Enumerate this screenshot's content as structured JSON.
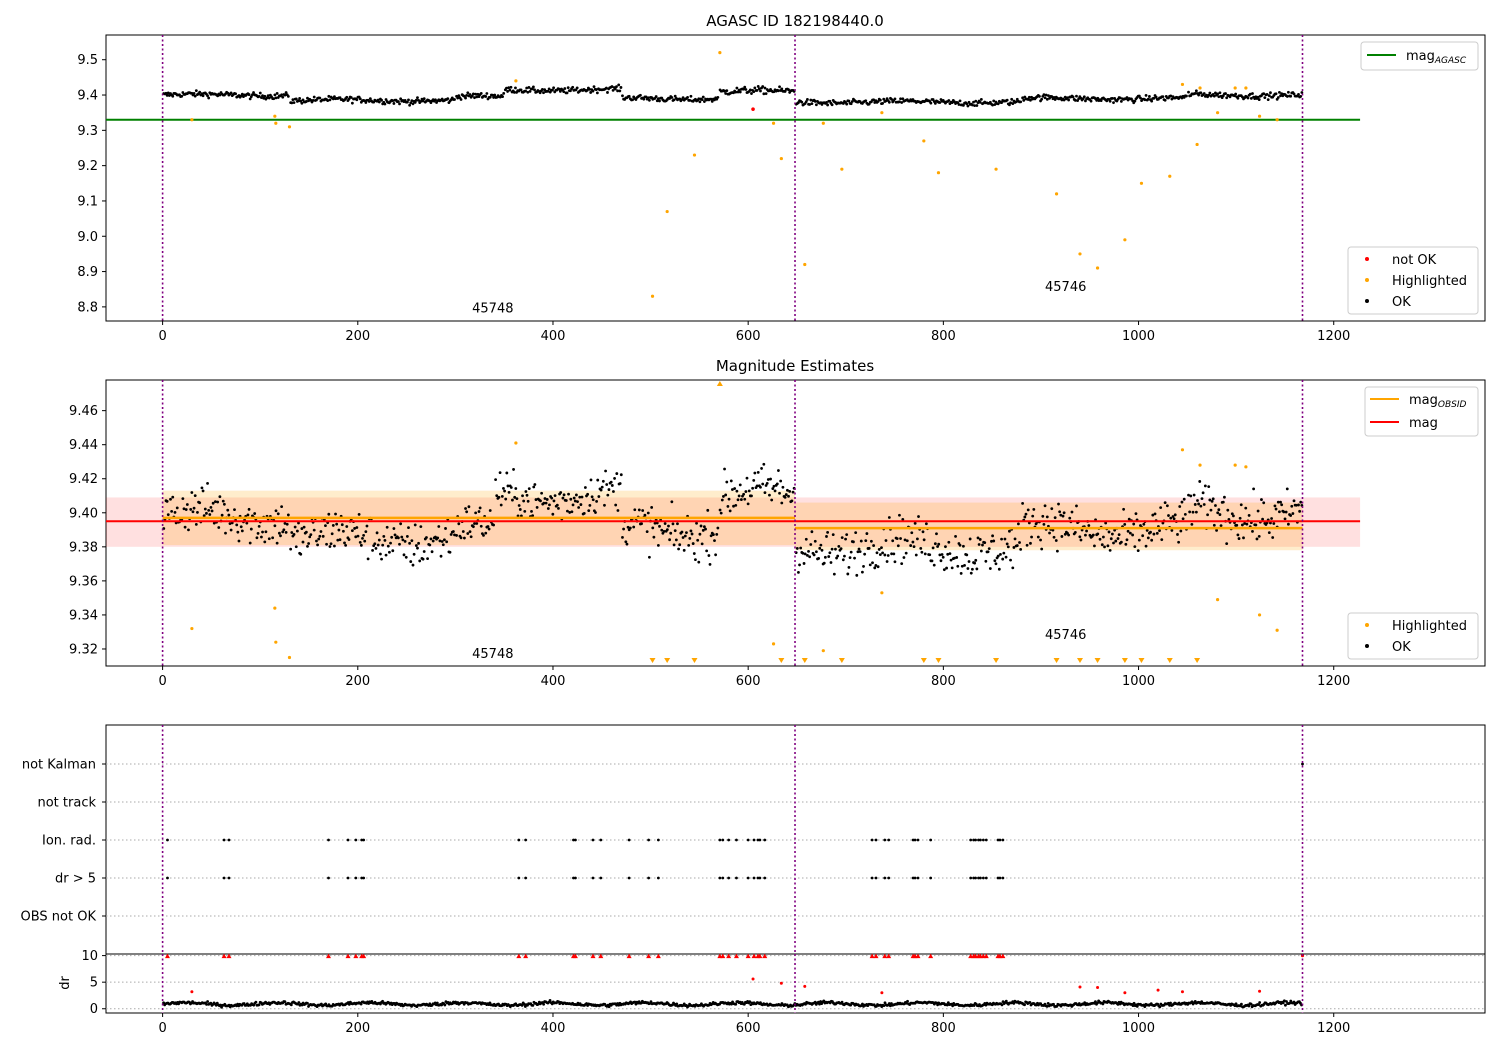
{
  "chart_data": [
    {
      "type": "scatter",
      "title": "AGASC ID 182198440.0",
      "xlim": [
        -58,
        1355
      ],
      "ylim": [
        8.76,
        9.57
      ],
      "xticks": [
        "0",
        "200",
        "400",
        "600",
        "800",
        "1000",
        "1200"
      ],
      "yticks": [
        "8.8",
        "8.9",
        "9.0",
        "9.1",
        "9.2",
        "9.3",
        "9.4",
        "9.5"
      ],
      "obs_boundaries": [
        0,
        648,
        1168
      ],
      "obs_labels": [
        {
          "text": "45748",
          "x": 323,
          "y": 8.79
        },
        {
          "text": "45746",
          "x": 910,
          "y": 8.85
        }
      ],
      "hlines": [
        {
          "name": "mag_AGASC",
          "y": 9.33,
          "x0": -58,
          "x1": 1227,
          "color": "#008000"
        }
      ],
      "legend_lines": [
        {
          "text": "mag",
          "sub": "AGASC",
          "color": "#008000"
        }
      ],
      "legend_points": [
        {
          "text": "not OK",
          "color": "#ff0000"
        },
        {
          "text": "Highlighted",
          "color": "#ffa500"
        },
        {
          "text": "OK",
          "color": "#000000"
        }
      ],
      "ok_segments": [
        {
          "x0": 0,
          "x1": 130,
          "base": 9.4,
          "jitter": 0.01
        },
        {
          "x0": 130,
          "x1": 300,
          "base": 9.385,
          "jitter": 0.01
        },
        {
          "x0": 300,
          "x1": 350,
          "base": 9.395,
          "jitter": 0.01
        },
        {
          "x0": 350,
          "x1": 470,
          "base": 9.415,
          "jitter": 0.01
        },
        {
          "x0": 470,
          "x1": 570,
          "base": 9.39,
          "jitter": 0.01
        },
        {
          "x0": 570,
          "x1": 648,
          "base": 9.41,
          "jitter": 0.012
        },
        {
          "x0": 648,
          "x1": 880,
          "base": 9.38,
          "jitter": 0.01
        },
        {
          "x0": 880,
          "x1": 1050,
          "base": 9.39,
          "jitter": 0.01
        },
        {
          "x0": 1050,
          "x1": 1168,
          "base": 9.4,
          "jitter": 0.01
        }
      ],
      "highlighted": [
        [
          30,
          9.33
        ],
        [
          115,
          9.34
        ],
        [
          116,
          9.32
        ],
        [
          130,
          9.31
        ],
        [
          362,
          9.44
        ],
        [
          502,
          8.83
        ],
        [
          517,
          9.07
        ],
        [
          545,
          9.23
        ],
        [
          571,
          9.52
        ],
        [
          626,
          9.32
        ],
        [
          634,
          9.22
        ],
        [
          658,
          8.92
        ],
        [
          677,
          9.32
        ],
        [
          696,
          9.19
        ],
        [
          737,
          9.35
        ],
        [
          780,
          9.27
        ],
        [
          795,
          9.18
        ],
        [
          854,
          9.19
        ],
        [
          916,
          9.12
        ],
        [
          940,
          8.95
        ],
        [
          958,
          8.91
        ],
        [
          986,
          8.99
        ],
        [
          1003,
          9.15
        ],
        [
          1032,
          9.17
        ],
        [
          1045,
          9.43
        ],
        [
          1060,
          9.26
        ],
        [
          1063,
          9.42
        ],
        [
          1081,
          9.35
        ],
        [
          1099,
          9.42
        ],
        [
          1110,
          9.42
        ],
        [
          1124,
          9.34
        ],
        [
          1142,
          9.33
        ]
      ],
      "not_ok": [
        [
          605,
          9.36
        ]
      ]
    },
    {
      "type": "scatter",
      "title": "Magnitude Estimates",
      "xlim": [
        -58,
        1355
      ],
      "ylim": [
        9.31,
        9.478
      ],
      "xticks": [
        "0",
        "200",
        "400",
        "600",
        "800",
        "1000",
        "1200"
      ],
      "yticks": [
        "9.32",
        "9.34",
        "9.36",
        "9.38",
        "9.40",
        "9.42",
        "9.44",
        "9.46"
      ],
      "obs_boundaries": [
        0,
        648,
        1168
      ],
      "obs_labels": [
        {
          "text": "45748",
          "x": 323,
          "y": 9.316
        },
        {
          "text": "45746",
          "x": 910,
          "y": 9.327
        }
      ],
      "mag": {
        "value": 9.395,
        "lo": 9.38,
        "hi": 9.409,
        "x0": -58,
        "x1": 1227,
        "color": "#ff0000"
      },
      "mag_obsid": [
        {
          "x0": 0,
          "x1": 648,
          "value": 9.397,
          "lo": 9.381,
          "hi": 9.413
        },
        {
          "x0": 648,
          "x1": 1168,
          "value": 9.391,
          "lo": 9.378,
          "hi": 9.406
        }
      ],
      "legend_lines": [
        {
          "text": "mag",
          "sub": "OBSID",
          "color": "#ffa500"
        },
        {
          "text": "mag",
          "sub": "",
          "color": "#ff0000"
        }
      ],
      "legend_points": [
        {
          "text": "Highlighted",
          "color": "#ffa500"
        },
        {
          "text": "OK",
          "color": "#000000"
        }
      ],
      "ok_segments": [
        {
          "x0": 0,
          "x1": 130,
          "base": 9.398,
          "jitter": 0.016
        },
        {
          "x0": 130,
          "x1": 300,
          "base": 9.385,
          "jitter": 0.016
        },
        {
          "x0": 300,
          "x1": 340,
          "base": 9.39,
          "jitter": 0.014
        },
        {
          "x0": 340,
          "x1": 470,
          "base": 9.41,
          "jitter": 0.014
        },
        {
          "x0": 470,
          "x1": 570,
          "base": 9.39,
          "jitter": 0.016
        },
        {
          "x0": 570,
          "x1": 648,
          "base": 9.41,
          "jitter": 0.016
        },
        {
          "x0": 648,
          "x1": 880,
          "base": 9.38,
          "jitter": 0.016
        },
        {
          "x0": 880,
          "x1": 1050,
          "base": 9.39,
          "jitter": 0.016
        },
        {
          "x0": 1050,
          "x1": 1168,
          "base": 9.4,
          "jitter": 0.016
        }
      ],
      "highlighted": [
        [
          30,
          9.332
        ],
        [
          115,
          9.344
        ],
        [
          116,
          9.324
        ],
        [
          130,
          9.315
        ],
        [
          362,
          9.441
        ],
        [
          626,
          9.323
        ],
        [
          677,
          9.319
        ],
        [
          737,
          9.353
        ],
        [
          1045,
          9.437
        ],
        [
          1063,
          9.428
        ],
        [
          1081,
          9.349
        ],
        [
          1099,
          9.428
        ],
        [
          1110,
          9.427
        ],
        [
          1124,
          9.34
        ],
        [
          1142,
          9.331
        ]
      ],
      "below_markers": [
        502,
        517,
        545,
        634,
        658,
        696,
        780,
        795,
        854,
        916,
        940,
        958,
        986,
        1003,
        1032,
        1060
      ],
      "above_markers": [
        571
      ]
    },
    {
      "type": "scatter",
      "title": "",
      "xlim": [
        -58,
        1355
      ],
      "xticks": [
        "0",
        "200",
        "400",
        "600",
        "800",
        "1000",
        "1200"
      ],
      "obs_boundaries": [
        0,
        648,
        1168
      ],
      "flag_rows": [
        "not Kalman",
        "not track",
        "Ion. rad.",
        "dr > 5",
        "OBS not OK"
      ],
      "flag_points": {
        "not Kalman": [
          1168
        ],
        "not track": [],
        "Ion. rad.": [
          5,
          63,
          68,
          170,
          190,
          198,
          204,
          206,
          365,
          372,
          421,
          423,
          441,
          449,
          478,
          498,
          508,
          571,
          574,
          580,
          588,
          600,
          606,
          610,
          612,
          617,
          727,
          731,
          740,
          744,
          769,
          771,
          774,
          787,
          828,
          831,
          833,
          836,
          838,
          841,
          844,
          856,
          858,
          861
        ],
        "dr > 5": [
          5,
          63,
          68,
          170,
          190,
          198,
          204,
          206,
          365,
          372,
          421,
          423,
          441,
          449,
          478,
          498,
          508,
          571,
          574,
          580,
          588,
          600,
          606,
          610,
          612,
          617,
          727,
          731,
          740,
          744,
          769,
          771,
          774,
          787,
          828,
          831,
          833,
          836,
          838,
          841,
          844,
          856,
          858,
          861
        ],
        "OBS not OK": []
      },
      "dr_ylabel": "dr",
      "dr_yticks": [
        "0",
        "5",
        "10"
      ],
      "dr_ylim": [
        -0.8,
        10.3
      ],
      "dr_clip": 10,
      "dr_outliers": [
        [
          30,
          3.2
        ],
        [
          605,
          5.6
        ],
        [
          634,
          4.8
        ],
        [
          658,
          4.2
        ],
        [
          737,
          3.0
        ],
        [
          940,
          4.1
        ],
        [
          958,
          4.0
        ],
        [
          986,
          3.0
        ],
        [
          1020,
          3.5
        ],
        [
          1045,
          3.2
        ],
        [
          1124,
          3.3
        ]
      ]
    }
  ]
}
